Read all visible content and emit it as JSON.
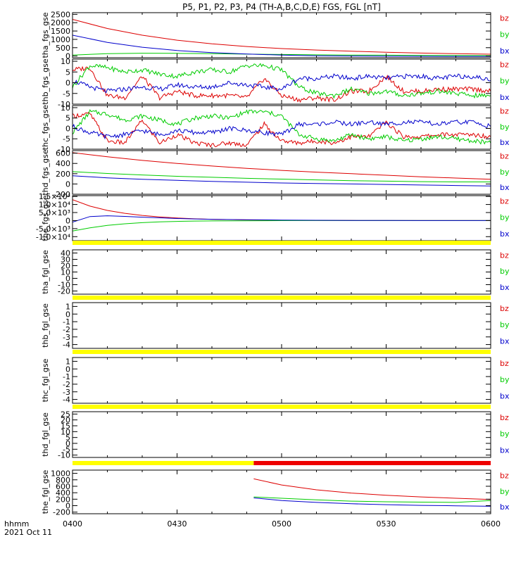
{
  "title": "P5, P1, P2, P3, P4 (TH-A,B,C,D,E) FGS, FGL [nT]",
  "time_axis": {
    "ticks": [
      "0400",
      "0430",
      "0500",
      "0530",
      "0600"
    ],
    "range_minutes": [
      0,
      120
    ],
    "unit_label": "hhmm",
    "date_label": "2021 Oct 11"
  },
  "legend": [
    {
      "label": "bz",
      "color": "#dd0000"
    },
    {
      "label": "by",
      "color": "#00cc00"
    },
    {
      "label": "bx",
      "color": "#0000cc"
    }
  ],
  "status_bar_colors": {
    "available": "#ffff00",
    "missing": "#ee0000"
  },
  "chart_data": [
    {
      "type": "line",
      "ylabel": "tha_fgs_gse",
      "ylim": [
        -100,
        2600
      ],
      "yticks": [
        {
          "v": 2500,
          "label": "2500"
        },
        {
          "v": 2000,
          "label": "2000"
        },
        {
          "v": 1500,
          "label": "1500"
        },
        {
          "v": 1000,
          "label": "1000"
        },
        {
          "v": 500,
          "label": "500"
        },
        {
          "v": 0,
          "label": "0"
        }
      ],
      "series": [
        {
          "name": "bz",
          "x": [
            0,
            10,
            20,
            30,
            40,
            50,
            60,
            70,
            80,
            90,
            100,
            110,
            120
          ],
          "values": [
            2200,
            1650,
            1250,
            950,
            730,
            570,
            450,
            360,
            290,
            230,
            180,
            140,
            110
          ]
        },
        {
          "name": "by",
          "x": [
            0,
            10,
            20,
            30,
            40,
            50,
            60,
            70,
            80,
            90,
            100,
            110,
            120
          ],
          "values": [
            60,
            140,
            170,
            160,
            140,
            115,
            95,
            75,
            60,
            50,
            40,
            30,
            25
          ]
        },
        {
          "name": "bx",
          "x": [
            0,
            10,
            20,
            30,
            40,
            50,
            60,
            70,
            80,
            90,
            100,
            110,
            120
          ],
          "values": [
            1250,
            820,
            530,
            330,
            210,
            120,
            60,
            20,
            0,
            -10,
            -15,
            -20,
            -20
          ]
        }
      ]
    },
    {
      "type": "line",
      "ylabel": "thb_fgs_gse",
      "ylim": [
        -10,
        11
      ],
      "yticks": [
        {
          "v": 10,
          "label": "10"
        },
        {
          "v": 5,
          "label": "5"
        },
        {
          "v": 0,
          "label": "0"
        },
        {
          "v": -5,
          "label": "-5"
        },
        {
          "v": -10,
          "label": "-10"
        }
      ],
      "series": [
        {
          "name": "bz",
          "x": [
            0,
            5,
            10,
            15,
            20,
            25,
            30,
            35,
            40,
            45,
            50,
            55,
            60,
            65,
            70,
            75,
            80,
            85,
            90,
            95,
            100,
            105,
            110,
            115,
            120
          ],
          "values": [
            6,
            7,
            -6,
            -7,
            3,
            -7,
            -4,
            -6,
            -6,
            -6,
            -7,
            2,
            -6,
            -8,
            -7,
            -8,
            -4,
            -4,
            3,
            -4,
            -4,
            -3,
            -3,
            -3,
            -4
          ]
        },
        {
          "name": "by",
          "x": [
            0,
            5,
            10,
            15,
            20,
            25,
            30,
            35,
            40,
            45,
            50,
            55,
            60,
            65,
            70,
            75,
            80,
            85,
            90,
            95,
            100,
            105,
            110,
            115,
            120
          ],
          "values": [
            -2,
            8,
            7,
            5,
            6,
            4,
            3,
            5,
            6,
            5,
            8,
            8,
            6,
            -2,
            -5,
            -6,
            -3,
            -5,
            -4,
            -6,
            -5,
            -4,
            -5,
            -6,
            -6
          ]
        },
        {
          "name": "bx",
          "x": [
            0,
            5,
            10,
            15,
            20,
            25,
            30,
            35,
            40,
            45,
            50,
            55,
            60,
            65,
            70,
            75,
            80,
            85,
            90,
            95,
            100,
            105,
            110,
            115,
            120
          ],
          "values": [
            1,
            -2,
            -4,
            -3,
            -2,
            -3,
            -1,
            -2,
            -2,
            0,
            -1,
            -2,
            -3,
            2,
            2,
            3,
            2,
            3,
            2,
            3,
            3,
            2,
            3,
            3,
            1
          ]
        }
      ]
    },
    {
      "type": "line",
      "ylabel": "thc_fgs_gse",
      "ylim": [
        -10,
        11
      ],
      "yticks": [
        {
          "v": 10,
          "label": "10"
        },
        {
          "v": 5,
          "label": "5"
        },
        {
          "v": 0,
          "label": "0"
        },
        {
          "v": -5,
          "label": "-5"
        },
        {
          "v": -10,
          "label": "-10"
        }
      ],
      "series": [
        {
          "name": "bz",
          "x": [
            0,
            5,
            10,
            15,
            20,
            25,
            30,
            35,
            40,
            45,
            50,
            55,
            60,
            65,
            70,
            75,
            80,
            85,
            90,
            95,
            100,
            105,
            110,
            115,
            120
          ],
          "values": [
            6,
            7,
            -6,
            -7,
            4,
            -7,
            -3,
            -7,
            -8,
            -7,
            -8,
            2,
            -6,
            -7,
            -6,
            -7,
            -4,
            -4,
            3,
            -4,
            -4,
            -3,
            -3,
            -3,
            -4
          ]
        },
        {
          "name": "by",
          "x": [
            0,
            5,
            10,
            15,
            20,
            25,
            30,
            35,
            40,
            45,
            50,
            55,
            60,
            65,
            70,
            75,
            80,
            85,
            90,
            95,
            100,
            105,
            110,
            115,
            120
          ],
          "values": [
            -2,
            8,
            7,
            4,
            6,
            4,
            2,
            5,
            6,
            5,
            8,
            8,
            6,
            -3,
            -5,
            -6,
            -3,
            -5,
            -4,
            -6,
            -5,
            -4,
            -5,
            -6,
            -7
          ]
        },
        {
          "name": "bx",
          "x": [
            0,
            5,
            10,
            15,
            20,
            25,
            30,
            35,
            40,
            45,
            50,
            55,
            60,
            65,
            70,
            75,
            80,
            85,
            90,
            95,
            100,
            105,
            110,
            115,
            120
          ],
          "values": [
            1,
            -2,
            -4,
            -3,
            -1,
            -3,
            -1,
            -2,
            -2,
            0,
            -1,
            -2,
            -3,
            2,
            2,
            3,
            2,
            3,
            2,
            3,
            3,
            2,
            3,
            3,
            1
          ]
        }
      ]
    },
    {
      "type": "line",
      "ylabel": "thd_fgs_gse",
      "ylim": [
        -200,
        650
      ],
      "yticks": [
        {
          "v": 600,
          "label": "600"
        },
        {
          "v": 400,
          "label": "400"
        },
        {
          "v": 200,
          "label": "200"
        },
        {
          "v": 0,
          "label": "0"
        },
        {
          "v": -200,
          "label": "-200"
        }
      ],
      "series": [
        {
          "name": "bz",
          "x": [
            0,
            10,
            20,
            30,
            40,
            50,
            60,
            70,
            80,
            90,
            100,
            110,
            120
          ],
          "values": [
            610,
            530,
            460,
            400,
            350,
            305,
            265,
            230,
            200,
            170,
            140,
            115,
            90
          ]
        },
        {
          "name": "by",
          "x": [
            0,
            10,
            20,
            30,
            40,
            50,
            60,
            70,
            80,
            90,
            100,
            110,
            120
          ],
          "values": [
            240,
            205,
            175,
            150,
            130,
            110,
            95,
            80,
            65,
            55,
            45,
            40,
            40
          ]
        },
        {
          "name": "bx",
          "x": [
            0,
            10,
            20,
            30,
            40,
            50,
            60,
            70,
            80,
            90,
            100,
            110,
            120
          ],
          "values": [
            160,
            120,
            90,
            70,
            50,
            35,
            20,
            10,
            0,
            -10,
            -20,
            -30,
            -40
          ]
        }
      ]
    },
    {
      "type": "line",
      "ylabel": "the_fgs_gse",
      "ylim": [
        -12500,
        15500
      ],
      "yticks": [
        {
          "v": 15000,
          "label": "1.5×10⁴"
        },
        {
          "v": 10000,
          "label": "1.0×10⁴"
        },
        {
          "v": 5000,
          "label": "5.0×10³"
        },
        {
          "v": 0,
          "label": "0"
        },
        {
          "v": -5000,
          "label": "-5.0×10³"
        },
        {
          "v": -10000,
          "label": "-1.0×10⁴"
        }
      ],
      "series": [
        {
          "name": "bz",
          "x": [
            0,
            5,
            10,
            15,
            20,
            25,
            30,
            35,
            40,
            50,
            60,
            70,
            80,
            90,
            100,
            110,
            120
          ],
          "values": [
            13000,
            9000,
            6300,
            4500,
            3200,
            2300,
            1600,
            1100,
            800,
            400,
            200,
            100,
            50,
            20,
            10,
            0,
            0
          ]
        },
        {
          "name": "by",
          "x": [
            0,
            5,
            10,
            15,
            20,
            25,
            30,
            35,
            40,
            50,
            60,
            70,
            80,
            90,
            100,
            110,
            120
          ],
          "values": [
            -6500,
            -4500,
            -3000,
            -2000,
            -1300,
            -800,
            -500,
            -300,
            -200,
            -100,
            -50,
            0,
            0,
            0,
            0,
            0,
            0
          ]
        },
        {
          "name": "bx",
          "x": [
            0,
            5,
            10,
            15,
            20,
            25,
            30,
            35,
            40,
            50,
            60,
            70,
            80,
            90,
            100,
            110,
            120
          ],
          "values": [
            -1000,
            2500,
            3000,
            2600,
            2100,
            1700,
            1300,
            1000,
            800,
            500,
            300,
            200,
            100,
            50,
            20,
            0,
            0
          ]
        }
      ]
    },
    {
      "type": "line",
      "ylabel": "tha_fgl_gse",
      "ylim": [
        -25,
        45
      ],
      "yticks": [
        {
          "v": 40,
          "label": "40"
        },
        {
          "v": 30,
          "label": "30"
        },
        {
          "v": 20,
          "label": "20"
        },
        {
          "v": 10,
          "label": "10"
        },
        {
          "v": 0,
          "label": "0"
        },
        {
          "v": -10,
          "label": "-10"
        },
        {
          "v": -20,
          "label": "-20"
        }
      ],
      "series": [],
      "status_bar": [
        {
          "from": 0,
          "to": 120,
          "state": "available"
        }
      ]
    },
    {
      "type": "line",
      "ylabel": "thb_fgl_gse",
      "ylim": [
        -4.5,
        1.5
      ],
      "yticks": [
        {
          "v": 1,
          "label": "1"
        },
        {
          "v": 0,
          "label": "0"
        },
        {
          "v": -1,
          "label": "-1"
        },
        {
          "v": -2,
          "label": "-2"
        },
        {
          "v": -3,
          "label": "-3"
        },
        {
          "v": -4,
          "label": "-4"
        }
      ],
      "series": [],
      "status_bar": [
        {
          "from": 0,
          "to": 120,
          "state": "available"
        }
      ]
    },
    {
      "type": "line",
      "ylabel": "thc_fgl_gse",
      "ylim": [
        -4.5,
        1.5
      ],
      "yticks": [
        {
          "v": 1,
          "label": "1"
        },
        {
          "v": 0,
          "label": "0"
        },
        {
          "v": -1,
          "label": "-1"
        },
        {
          "v": -2,
          "label": "-2"
        },
        {
          "v": -3,
          "label": "-3"
        },
        {
          "v": -4,
          "label": "-4"
        }
      ],
      "series": [],
      "status_bar": [
        {
          "from": 0,
          "to": 120,
          "state": "available"
        }
      ]
    },
    {
      "type": "line",
      "ylabel": "thd_fgl_gse",
      "ylim": [
        -12,
        27
      ],
      "yticks": [
        {
          "v": 25,
          "label": "25"
        },
        {
          "v": 20,
          "label": "20"
        },
        {
          "v": 15,
          "label": "15"
        },
        {
          "v": 10,
          "label": "10"
        },
        {
          "v": 5,
          "label": "5"
        },
        {
          "v": 0,
          "label": "0"
        },
        {
          "v": -5,
          "label": "-5"
        },
        {
          "v": -10,
          "label": "-10"
        }
      ],
      "series": [],
      "status_bar": [
        {
          "from": 0,
          "to": 120,
          "state": "available"
        }
      ]
    },
    {
      "type": "line",
      "ylabel": "the_fgl_gse",
      "ylim": [
        -250,
        1100
      ],
      "yticks": [
        {
          "v": 1000,
          "label": "1000"
        },
        {
          "v": 800,
          "label": "800"
        },
        {
          "v": 600,
          "label": "600"
        },
        {
          "v": 400,
          "label": "400"
        },
        {
          "v": 200,
          "label": "200"
        },
        {
          "v": 0,
          "label": "0"
        },
        {
          "v": -200,
          "label": "-200"
        }
      ],
      "series": [
        {
          "name": "bz",
          "x": [
            52,
            60,
            70,
            80,
            90,
            100,
            110,
            120
          ],
          "values": [
            830,
            640,
            490,
            390,
            320,
            270,
            230,
            190
          ]
        },
        {
          "name": "by",
          "x": [
            52,
            60,
            70,
            80,
            90,
            100,
            110,
            120
          ],
          "values": [
            270,
            230,
            180,
            140,
            120,
            110,
            100,
            160
          ]
        },
        {
          "name": "bx",
          "x": [
            52,
            60,
            70,
            80,
            90,
            100,
            110,
            120
          ],
          "values": [
            240,
            160,
            100,
            60,
            30,
            10,
            -5,
            -20
          ]
        }
      ],
      "status_bar": [
        {
          "from": 0,
          "to": 52,
          "state": "available"
        },
        {
          "from": 52,
          "to": 120,
          "state": "missing"
        }
      ]
    }
  ]
}
